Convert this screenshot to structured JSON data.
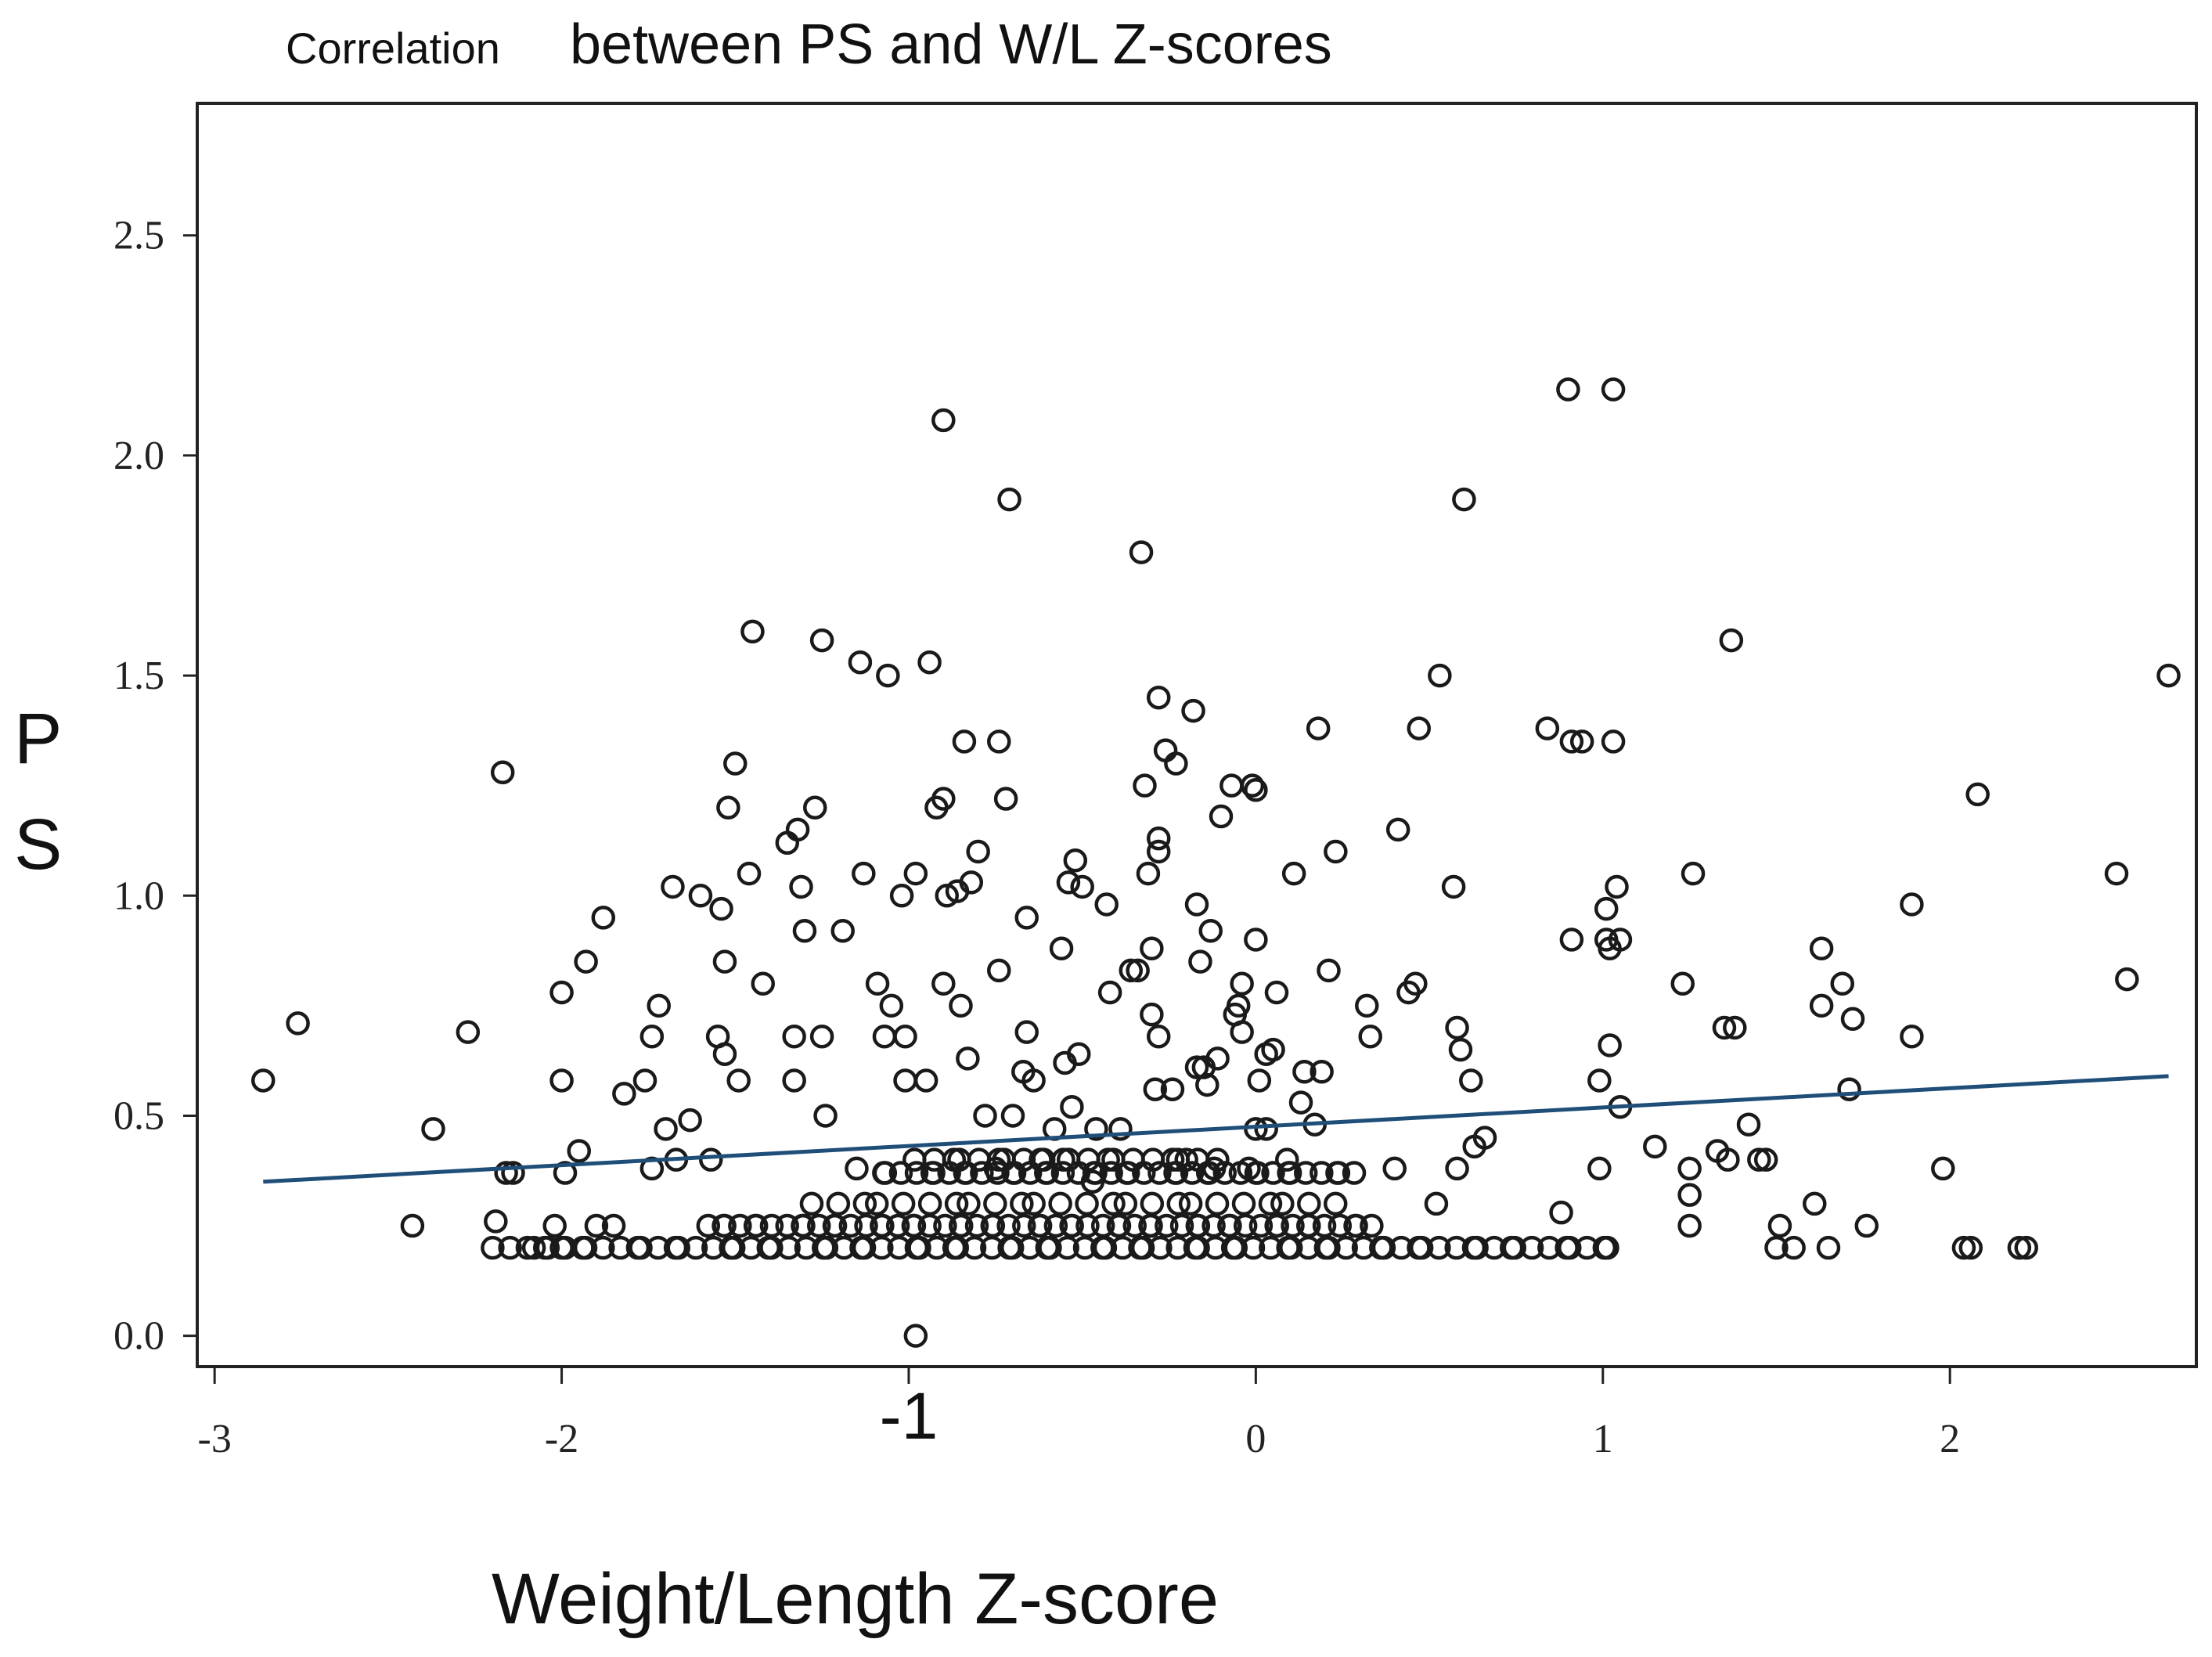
{
  "chart_data": {
    "type": "scatter",
    "title_prefix": "Correlation",
    "title_main": "between PS and W/L Z-scores",
    "xlabel": "Weight/Length Z-score",
    "ylabel": [
      "P",
      "S"
    ],
    "xlim": [
      -3.05,
      2.71
    ],
    "ylim": [
      -0.07,
      2.8
    ],
    "x_ticks": [
      -3,
      -2,
      -1,
      0,
      1,
      2
    ],
    "x_tick_labels": [
      "-3",
      "-2",
      "-1",
      "0",
      "1",
      "2"
    ],
    "y_ticks": [
      0.0,
      0.5,
      1.0,
      1.5,
      2.0,
      2.5
    ],
    "y_tick_labels": [
      "0.0",
      "0.5",
      "1.0",
      "1.5",
      "2.0",
      "2.5"
    ],
    "colors": {
      "points": "#1a1a1a",
      "fit_line": "#1f4e79",
      "frame": "#222222"
    },
    "fit_line": {
      "x": [
        -2.86,
        2.63
      ],
      "y": [
        0.35,
        0.59
      ]
    },
    "points_scattered": [
      [
        -2.86,
        0.58
      ],
      [
        -2.76,
        0.71
      ],
      [
        -2.43,
        0.25
      ],
      [
        -2.37,
        0.47
      ],
      [
        -2.27,
        0.69
      ],
      [
        -2.19,
        0.26
      ],
      [
        -2.17,
        1.28
      ],
      [
        -2.16,
        0.37
      ],
      [
        -2.14,
        0.37
      ],
      [
        -2.0,
        0.78
      ],
      [
        -2.0,
        0.58
      ],
      [
        -1.99,
        0.37
      ],
      [
        -1.95,
        0.42
      ],
      [
        -1.93,
        0.85
      ],
      [
        -1.88,
        0.95
      ],
      [
        -1.82,
        0.55
      ],
      [
        -1.76,
        0.58
      ],
      [
        -1.74,
        0.38
      ],
      [
        -1.74,
        0.68
      ],
      [
        -1.72,
        0.75
      ],
      [
        -1.7,
        0.47
      ],
      [
        -1.68,
        1.02
      ],
      [
        -1.67,
        0.4
      ],
      [
        -1.63,
        0.49
      ],
      [
        -1.6,
        1.0
      ],
      [
        -1.57,
        0.4
      ],
      [
        -1.55,
        0.68
      ],
      [
        -1.54,
        0.97
      ],
      [
        -1.53,
        0.64
      ],
      [
        -1.53,
        0.85
      ],
      [
        -1.52,
        1.2
      ],
      [
        -1.5,
        1.3
      ],
      [
        -1.49,
        0.58
      ],
      [
        -1.46,
        1.05
      ],
      [
        -1.45,
        1.6
      ],
      [
        -1.42,
        0.8
      ],
      [
        -1.35,
        1.12
      ],
      [
        -1.33,
        0.68
      ],
      [
        -1.33,
        0.58
      ],
      [
        -1.32,
        1.15
      ],
      [
        -1.31,
        1.02
      ],
      [
        -1.3,
        0.92
      ],
      [
        -1.27,
        1.2
      ],
      [
        -1.25,
        0.68
      ],
      [
        -1.25,
        1.58
      ],
      [
        -1.24,
        0.5
      ],
      [
        -1.19,
        0.92
      ],
      [
        -1.15,
        0.38
      ],
      [
        -1.14,
        1.53
      ],
      [
        -1.13,
        1.05
      ],
      [
        -1.09,
        0.8
      ],
      [
        -1.07,
        0.68
      ],
      [
        -1.06,
        1.5
      ],
      [
        -1.05,
        0.75
      ],
      [
        -1.02,
        1.0
      ],
      [
        -1.01,
        0.68
      ],
      [
        -1.01,
        0.58
      ],
      [
        -0.98,
        1.05
      ],
      [
        -0.95,
        0.58
      ],
      [
        -0.94,
        1.53
      ],
      [
        -0.92,
        1.2
      ],
      [
        -0.9,
        1.22
      ],
      [
        -0.9,
        0.8
      ],
      [
        -0.9,
        2.08
      ],
      [
        -0.89,
        1.0
      ],
      [
        -0.86,
        1.01
      ],
      [
        -0.85,
        0.75
      ],
      [
        -0.84,
        1.35
      ],
      [
        -0.83,
        0.63
      ],
      [
        -0.82,
        1.03
      ],
      [
        -0.8,
        1.1
      ],
      [
        -0.78,
        0.5
      ],
      [
        -0.75,
        0.38
      ],
      [
        -0.74,
        0.83
      ],
      [
        -0.74,
        1.35
      ],
      [
        -0.72,
        1.22
      ],
      [
        -0.71,
        1.9
      ],
      [
        -0.7,
        0.5
      ],
      [
        -0.67,
        0.6
      ],
      [
        -0.66,
        0.95
      ],
      [
        -0.66,
        0.69
      ],
      [
        -0.64,
        0.58
      ],
      [
        -0.62,
        0.4
      ],
      [
        -0.58,
        0.47
      ],
      [
        -0.56,
        0.88
      ],
      [
        -0.55,
        0.62
      ],
      [
        -0.54,
        1.03
      ],
      [
        -0.53,
        0.52
      ],
      [
        -0.52,
        1.08
      ],
      [
        -0.51,
        0.64
      ],
      [
        -0.5,
        1.02
      ],
      [
        -0.47,
        0.35
      ],
      [
        -0.46,
        0.47
      ],
      [
        -0.43,
        0.98
      ],
      [
        -0.42,
        0.78
      ],
      [
        -0.39,
        0.47
      ],
      [
        -0.36,
        0.83
      ],
      [
        -0.34,
        0.83
      ],
      [
        -0.33,
        1.78
      ],
      [
        -0.32,
        1.25
      ],
      [
        -0.31,
        1.05
      ],
      [
        -0.3,
        0.88
      ],
      [
        -0.3,
        0.73
      ],
      [
        -0.29,
        0.56
      ],
      [
        -0.28,
        0.68
      ],
      [
        -0.28,
        1.13
      ],
      [
        -0.28,
        1.1
      ],
      [
        -0.28,
        1.45
      ],
      [
        -0.26,
        1.33
      ],
      [
        -0.24,
        0.56
      ],
      [
        -0.23,
        1.3
      ],
      [
        -0.2,
        0.4
      ],
      [
        -0.18,
        1.42
      ],
      [
        -0.17,
        0.98
      ],
      [
        -0.17,
        0.61
      ],
      [
        -0.16,
        0.85
      ],
      [
        -0.15,
        0.61
      ],
      [
        -0.14,
        0.57
      ],
      [
        -0.13,
        0.92
      ],
      [
        -0.12,
        0.38
      ],
      [
        -0.11,
        0.63
      ],
      [
        -0.1,
        1.18
      ],
      [
        -0.07,
        1.25
      ],
      [
        -0.06,
        0.73
      ],
      [
        -0.05,
        0.75
      ],
      [
        -0.04,
        0.8
      ],
      [
        -0.04,
        0.69
      ],
      [
        -0.02,
        0.38
      ],
      [
        -0.01,
        1.25
      ],
      [
        0.0,
        1.24
      ],
      [
        0.0,
        0.9
      ],
      [
        0.0,
        0.47
      ],
      [
        0.01,
        0.58
      ],
      [
        0.03,
        0.64
      ],
      [
        0.03,
        0.47
      ],
      [
        0.05,
        0.65
      ],
      [
        0.06,
        0.78
      ],
      [
        0.09,
        0.4
      ],
      [
        0.11,
        1.05
      ],
      [
        0.13,
        0.53
      ],
      [
        0.14,
        0.6
      ],
      [
        0.17,
        0.48
      ],
      [
        0.18,
        1.38
      ],
      [
        0.19,
        0.6
      ],
      [
        0.21,
        0.83
      ],
      [
        0.23,
        1.1
      ],
      [
        0.32,
        0.75
      ],
      [
        0.33,
        0.68
      ],
      [
        0.4,
        0.38
      ],
      [
        0.41,
        1.15
      ],
      [
        0.44,
        0.78
      ],
      [
        0.46,
        0.8
      ],
      [
        0.47,
        1.38
      ],
      [
        0.52,
        0.3
      ],
      [
        0.53,
        1.5
      ],
      [
        0.57,
        1.02
      ],
      [
        0.58,
        0.7
      ],
      [
        0.58,
        0.38
      ],
      [
        0.59,
        0.65
      ],
      [
        0.6,
        1.9
      ],
      [
        0.62,
        0.58
      ],
      [
        0.63,
        0.43
      ],
      [
        0.66,
        0.45
      ],
      [
        0.84,
        1.38
      ],
      [
        0.88,
        0.28
      ],
      [
        0.9,
        2.15
      ],
      [
        0.91,
        1.35
      ],
      [
        0.91,
        0.9
      ],
      [
        0.94,
        1.35
      ],
      [
        0.99,
        0.58
      ],
      [
        0.99,
        0.38
      ],
      [
        1.01,
        0.97
      ],
      [
        1.01,
        0.9
      ],
      [
        1.02,
        0.66
      ],
      [
        1.02,
        0.88
      ],
      [
        1.03,
        2.15
      ],
      [
        1.03,
        1.35
      ],
      [
        1.04,
        1.02
      ],
      [
        1.05,
        0.52
      ],
      [
        1.15,
        0.43
      ],
      [
        1.23,
        0.8
      ],
      [
        1.25,
        0.38
      ],
      [
        1.25,
        0.32
      ],
      [
        1.26,
        1.05
      ],
      [
        1.33,
        0.42
      ],
      [
        1.35,
        0.7
      ],
      [
        1.36,
        0.4
      ],
      [
        1.37,
        1.58
      ],
      [
        1.38,
        0.7
      ],
      [
        1.42,
        0.48
      ],
      [
        1.45,
        0.4
      ],
      [
        1.47,
        0.4
      ],
      [
        1.51,
        0.25
      ],
      [
        1.61,
        0.3
      ],
      [
        1.63,
        0.88
      ],
      [
        1.63,
        0.75
      ],
      [
        1.69,
        0.8
      ],
      [
        1.72,
        0.72
      ],
      [
        1.71,
        0.56
      ],
      [
        1.76,
        0.25
      ],
      [
        1.89,
        0.68
      ],
      [
        1.89,
        0.98
      ],
      [
        1.98,
        0.38
      ],
      [
        2.08,
        1.23
      ],
      [
        2.48,
        1.05
      ],
      [
        2.51,
        0.81
      ],
      [
        2.63,
        1.5
      ],
      [
        -0.98,
        0.0
      ]
    ],
    "dense_band": {
      "y_levels": [
        0.2,
        0.25,
        0.3,
        0.37,
        0.4
      ],
      "x_ranges": [
        [
          -2.2,
          1.05
        ],
        [
          -1.6,
          0.35
        ],
        [
          -1.3,
          0.25
        ],
        [
          -1.1,
          0.3
        ],
        [
          -1.0,
          -0.1
        ]
      ],
      "counts": [
        85,
        60,
        24,
        42,
        20
      ],
      "sparse_x": [
        [
          1.05,
          0.9
        ],
        [
          1.25,
          0.25
        ],
        [
          1.5,
          0.2
        ],
        [
          1.55,
          0.2
        ],
        [
          1.65,
          0.2
        ],
        [
          2.04,
          0.2
        ],
        [
          2.06,
          0.2
        ],
        [
          2.2,
          0.2
        ],
        [
          2.22,
          0.2
        ],
        [
          -2.08,
          0.2
        ],
        [
          -2.0,
          0.2
        ],
        [
          -1.9,
          0.25
        ],
        [
          -1.85,
          0.25
        ],
        [
          -2.02,
          0.25
        ]
      ]
    }
  }
}
